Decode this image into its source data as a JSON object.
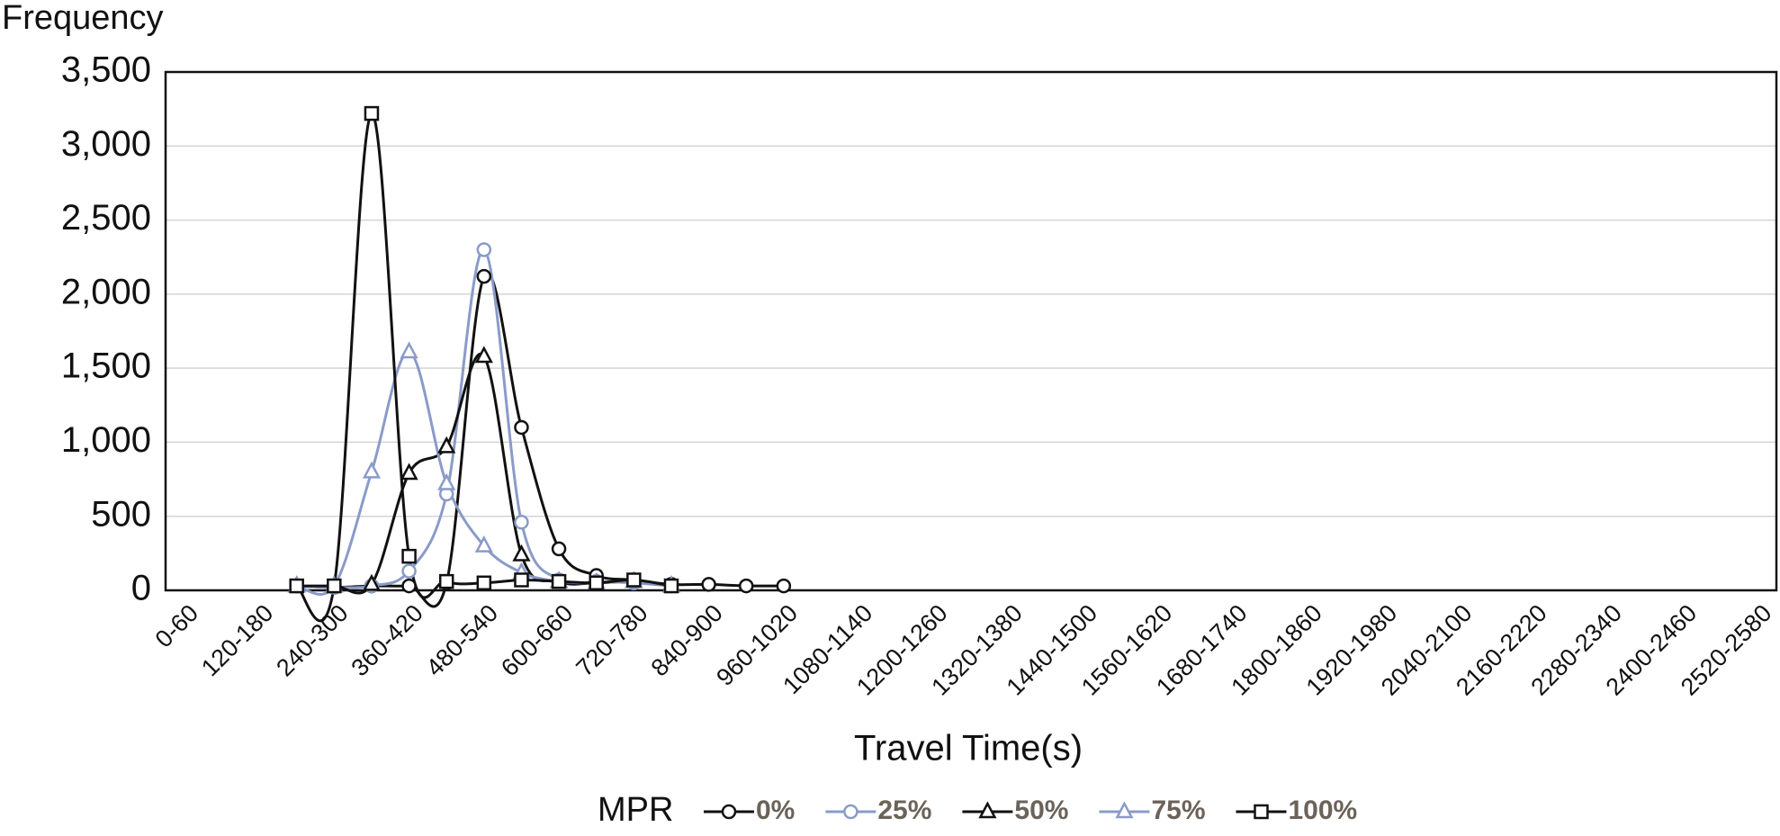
{
  "chart_data": {
    "type": "line",
    "y_label": "Frequency",
    "x_label": "Travel Time(s)",
    "legend_title": "MPR",
    "categories": [
      "0-60",
      null,
      "120-180",
      null,
      "240-300",
      null,
      "360-420",
      null,
      "480-540",
      null,
      "600-660",
      null,
      "720-780",
      null,
      "840-900",
      null,
      "960-1020",
      null,
      "1080-1140",
      null,
      "1200-1260",
      null,
      "1320-1380",
      null,
      "1440-1500",
      null,
      "1560-1620",
      null,
      "1680-1740",
      null,
      "1800-1860",
      null,
      "1920-1980",
      null,
      "2040-2100",
      null,
      "2160-2220",
      null,
      "2280-2340",
      null,
      "2400-2460",
      null,
      "2520-2580"
    ],
    "ylim": [
      0,
      3500
    ],
    "yticks": [
      0,
      500,
      {
        "value": 1000,
        "label": "1,000"
      },
      {
        "value": 1500,
        "label": "1,500"
      },
      {
        "value": 2000,
        "label": "2,000"
      },
      {
        "value": 2500,
        "label": "2,500"
      },
      {
        "value": 3000,
        "label": "3,000"
      },
      {
        "value": 3500,
        "label": "3,500"
      }
    ],
    "grid": true,
    "legend": "bottom",
    "smooth": true,
    "series": [
      {
        "name": "0%",
        "color": "#111111",
        "marker": "circle",
        "values": [
          null,
          null,
          null,
          30,
          20,
          30,
          30,
          50,
          2120,
          1100,
          280,
          100,
          70,
          40,
          40,
          30,
          30,
          null,
          null,
          null,
          null,
          null,
          null,
          null,
          null,
          null,
          null,
          null,
          null,
          null,
          null,
          null,
          null,
          null,
          null,
          null,
          null,
          null,
          null,
          null,
          null,
          null,
          null
        ]
      },
      {
        "name": "25%",
        "color": "#8a9bc9",
        "marker": "circle",
        "values": [
          null,
          null,
          null,
          30,
          20,
          30,
          130,
          650,
          2300,
          460,
          70,
          60,
          50,
          30,
          null,
          null,
          null,
          null,
          null,
          null,
          null,
          null,
          null,
          null,
          null,
          null,
          null,
          null,
          null,
          null,
          null,
          null,
          null,
          null,
          null,
          null,
          null,
          null,
          null,
          null,
          null,
          null,
          null
        ]
      },
      {
        "name": "50%",
        "color": "#111111",
        "marker": "triangle",
        "values": [
          null,
          null,
          null,
          30,
          30,
          40,
          790,
          970,
          1580,
          240,
          60,
          50,
          60,
          30,
          null,
          null,
          null,
          null,
          null,
          null,
          null,
          null,
          null,
          null,
          null,
          null,
          null,
          null,
          null,
          null,
          null,
          null,
          null,
          null,
          null,
          null,
          null,
          null,
          null,
          null,
          null,
          null,
          null
        ]
      },
      {
        "name": "75%",
        "color": "#8a9bc9",
        "marker": "triangle",
        "values": [
          null,
          null,
          null,
          30,
          30,
          800,
          1610,
          720,
          300,
          120,
          60,
          50,
          60,
          30,
          null,
          null,
          null,
          null,
          null,
          null,
          null,
          null,
          null,
          null,
          null,
          null,
          null,
          null,
          null,
          null,
          null,
          null,
          null,
          null,
          null,
          null,
          null,
          null,
          null,
          null,
          null,
          null,
          null
        ]
      },
      {
        "name": "100%",
        "color": "#111111",
        "marker": "square",
        "values": [
          null,
          null,
          null,
          30,
          30,
          3220,
          230,
          60,
          50,
          70,
          60,
          50,
          70,
          30,
          null,
          null,
          null,
          null,
          null,
          null,
          null,
          null,
          null,
          null,
          null,
          null,
          null,
          null,
          null,
          null,
          null,
          null,
          null,
          null,
          null,
          null,
          null,
          null,
          null,
          null,
          null,
          null,
          null
        ]
      }
    ]
  }
}
